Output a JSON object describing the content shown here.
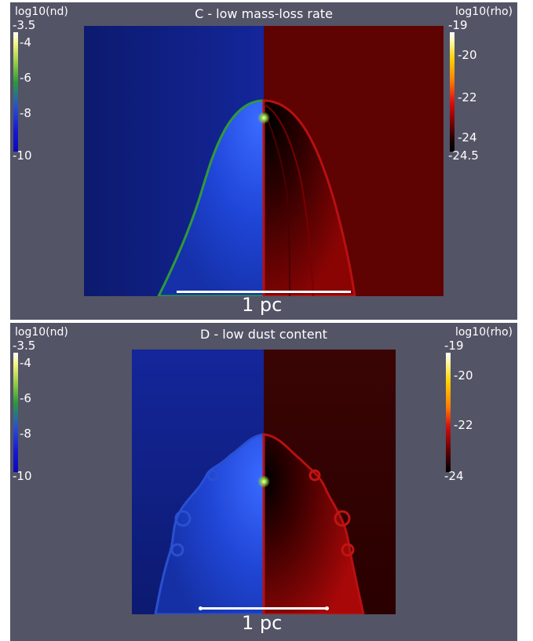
{
  "panels": [
    {
      "title": "C - low mass-loss rate",
      "left_colorbar": {
        "label": "log10(nd)",
        "ticks": [
          "-3.5",
          "-4",
          "-6",
          "-8",
          "-10"
        ]
      },
      "right_colorbar": {
        "label": "log10(rho)",
        "ticks": [
          "-19",
          "-20",
          "-22",
          "-24",
          "-24.5"
        ]
      },
      "scale_label": "1 pc"
    },
    {
      "title": "D - low dust content",
      "left_colorbar": {
        "label": "log10(nd)",
        "ticks": [
          "-3.5",
          "-4",
          "-6",
          "-8",
          "-10"
        ]
      },
      "right_colorbar": {
        "label": "log10(rho)",
        "ticks": [
          "-19",
          "-20",
          "-22",
          "-24"
        ]
      },
      "scale_label": "1 pc"
    }
  ],
  "colors": {
    "background": "#535466",
    "dust_map_base": "#0d1a78",
    "density_map_base": "#5a0000",
    "shock_edge": "#3a9a3a",
    "star": "#ffe060"
  }
}
